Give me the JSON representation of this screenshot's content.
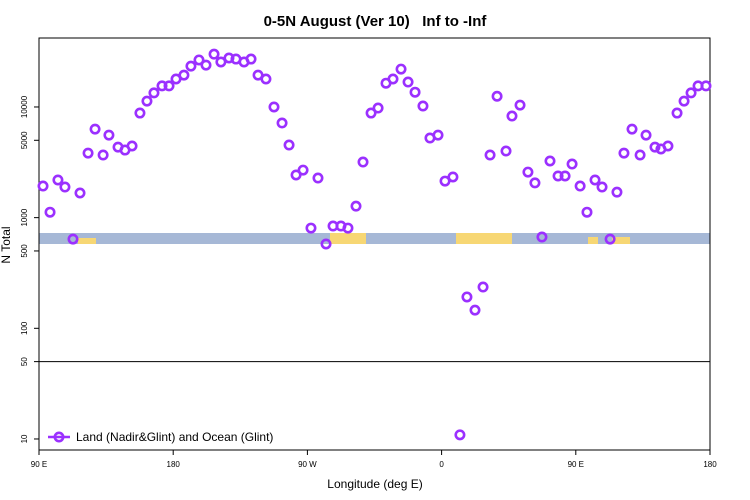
{
  "chart_data": {
    "type": "scatter",
    "title": "0-5N August (Ver 10)   Inf to -Inf",
    "x_label": "Longitude (deg E)",
    "y_label": "N Total",
    "log_scale_y": true,
    "xlim": [
      90,
      540
    ],
    "ylim": [
      7.95,
      42000
    ],
    "xticks": [
      {
        "value": 90,
        "label": "90 E"
      },
      180,
      {
        "value": 270,
        "label": "90 W"
      },
      {
        "value": 360,
        "label": "0"
      },
      {
        "value": 450,
        "label": "90 E"
      },
      {
        "value": 540,
        "label": "180"
      }
    ],
    "yticks": [
      10,
      50,
      100,
      500,
      1000,
      5000,
      10000
    ],
    "hline": 50,
    "legend": "bottom-left",
    "x": [
      92.7,
      97.4,
      102.7,
      107.4,
      112.8,
      117.5,
      122.9,
      127.6,
      133,
      136.9,
      143,
      147.7,
      152.4,
      157.7,
      162.4,
      167.1,
      172.5,
      177.2,
      181.9,
      187.2,
      191.9,
      197.3,
      202,
      207.4,
      212,
      217.4,
      222.1,
      227.5,
      232.2,
      236.9,
      242.2,
      247.6,
      253,
      257.7,
      262.4,
      267.1,
      272.4,
      277.1,
      282.5,
      287.2,
      292.5,
      297.2,
      302.6,
      307.3,
      312.7,
      317.4,
      322.7,
      327.4,
      332.8,
      337.5,
      342.2,
      347.5,
      352.2,
      357.6,
      362.3,
      367.6,
      372.3,
      377,
      382.4,
      387.8,
      392.5,
      397.2,
      403.2,
      407.2,
      412.6,
      417.9,
      422.6,
      427.3,
      432.7,
      438.1,
      442.8,
      447.5,
      452.9,
      457.5,
      462.9,
      467.6,
      473,
      477.6,
      482.3,
      487.7,
      493.1,
      497.1,
      503.1,
      507.1,
      511.8,
      517.9,
      522.6,
      527.3,
      532,
      537.3
    ],
    "series": [
      {
        "name": "Land (Nadir&Glint) and Ocean (Glint)",
        "color": "#9b30ff",
        "values": [
          1930,
          1120,
          2190,
          1890,
          640,
          1670,
          3830,
          6310,
          3680,
          5570,
          4340,
          4080,
          4440,
          8810,
          11300,
          13400,
          15500,
          15500,
          17900,
          19400,
          23400,
          26600,
          23900,
          30000,
          25500,
          27700,
          27100,
          25500,
          27100,
          19400,
          17900,
          10000,
          7160,
          4530,
          2430,
          2690,
          805,
          2280,
          578,
          840,
          840,
          805,
          1270,
          3180,
          8810,
          9780,
          16400,
          17900,
          22000,
          16800,
          13600,
          10200,
          5240,
          5570,
          2140,
          2330,
          10.9,
          192,
          146,
          236,
          3680,
          12500,
          4000,
          8280,
          10400,
          2580,
          2060,
          668,
          3250,
          2380,
          2380,
          3050,
          1930,
          1120,
          2190,
          1890,
          640,
          1700,
          3830,
          6310,
          3680,
          5570,
          4340,
          4170,
          4440,
          8810,
          11300,
          13400,
          15500,
          15500
        ]
      }
    ]
  }
}
